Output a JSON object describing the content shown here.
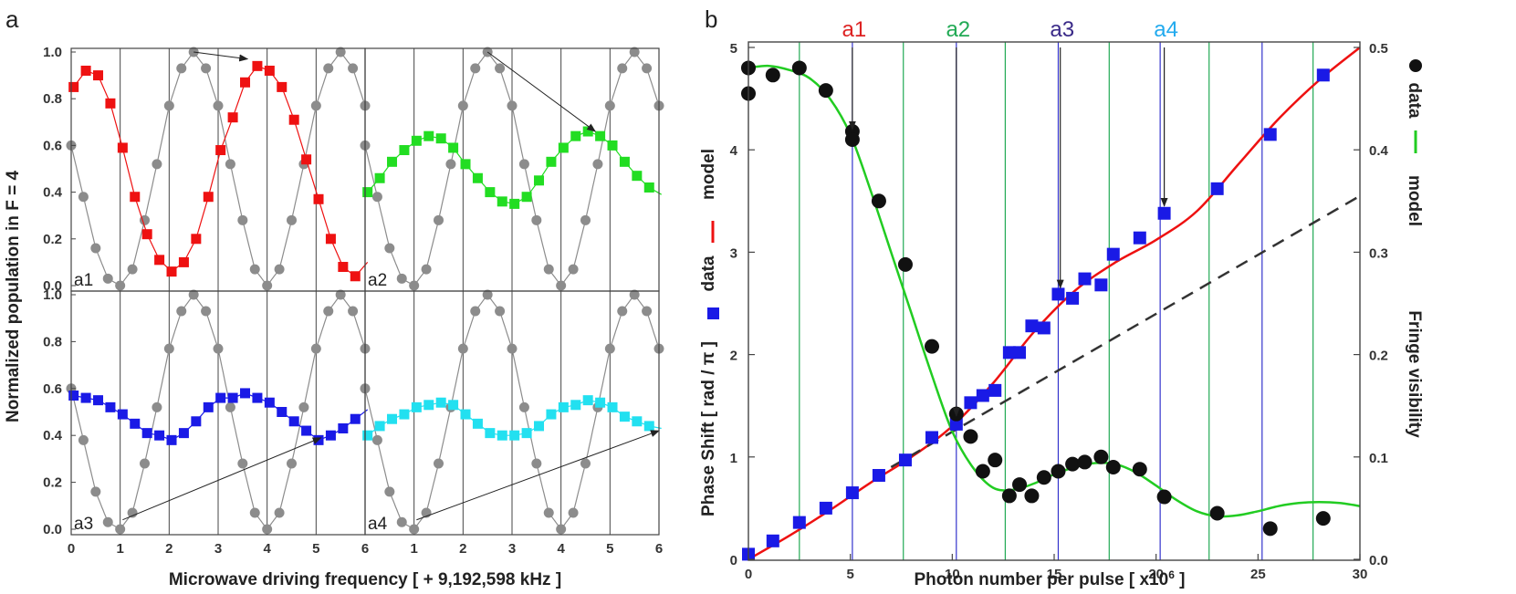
{
  "figure": {
    "panel_a_label": "a",
    "panel_b_label": "b"
  },
  "colors": {
    "gray": "#8c8c8c",
    "red": "#ee1111",
    "green": "#22dd22",
    "blue": "#1a1ae6",
    "cyan": "#22e0f0",
    "model_red": "#ee1111",
    "model_green": "#22cc22",
    "vline_green": "#22aa55",
    "vline_blue": "#3333cc",
    "data_black": "#111111",
    "a1": "#dd2222",
    "a2": "#22aa55",
    "a3": "#3a2a88",
    "a4": "#22aaee"
  },
  "chart_data": [
    {
      "type": "scatter",
      "id": "panel-a",
      "title": "",
      "xlabel": "Microwave driving frequency  [ + 9,192,598 kHz ]",
      "ylabel": "Normalized population in F = 4",
      "xlim": [
        0,
        6
      ],
      "ylim": [
        0,
        1.08
      ],
      "x_ticks": [
        "0",
        "1",
        "2",
        "3",
        "4",
        "5",
        "6"
      ],
      "y_ticks": [
        "0.0",
        "0.2",
        "0.4",
        "0.6",
        "0.8",
        "1.0"
      ],
      "subplots": [
        {
          "label": "a1",
          "color": "#ee1111",
          "x": [
            0.05,
            0.3,
            0.55,
            0.8,
            1.05,
            1.3,
            1.55,
            1.8,
            2.05,
            2.3,
            2.55,
            2.8,
            3.05,
            3.3,
            3.55,
            3.8,
            4.05,
            4.3,
            4.55,
            4.8,
            5.05,
            5.3,
            5.55,
            5.8,
            6.05
          ],
          "y": [
            0.85,
            0.92,
            0.9,
            0.78,
            0.59,
            0.38,
            0.22,
            0.11,
            0.06,
            0.1,
            0.2,
            0.38,
            0.58,
            0.72,
            0.87,
            0.94,
            0.92,
            0.85,
            0.71,
            0.54,
            0.37,
            0.2,
            0.08,
            0.04,
            0.1
          ]
        },
        {
          "label": "a2",
          "color": "#22dd22",
          "x": [
            0.05,
            0.3,
            0.55,
            0.8,
            1.05,
            1.3,
            1.55,
            1.8,
            2.05,
            2.3,
            2.55,
            2.8,
            3.05,
            3.3,
            3.55,
            3.8,
            4.05,
            4.3,
            4.55,
            4.8,
            5.05,
            5.3,
            5.55,
            5.8,
            6.05
          ],
          "y": [
            0.4,
            0.46,
            0.53,
            0.58,
            0.62,
            0.64,
            0.63,
            0.59,
            0.52,
            0.46,
            0.4,
            0.36,
            0.35,
            0.38,
            0.45,
            0.53,
            0.59,
            0.64,
            0.66,
            0.64,
            0.6,
            0.53,
            0.47,
            0.42,
            0.39
          ]
        },
        {
          "label": "a3",
          "color": "#1a1ae6",
          "x": [
            0.05,
            0.3,
            0.55,
            0.8,
            1.05,
            1.3,
            1.55,
            1.8,
            2.05,
            2.3,
            2.55,
            2.8,
            3.05,
            3.3,
            3.55,
            3.8,
            4.05,
            4.3,
            4.55,
            4.8,
            5.05,
            5.3,
            5.55,
            5.8,
            6.05
          ],
          "y": [
            0.57,
            0.56,
            0.55,
            0.52,
            0.49,
            0.45,
            0.41,
            0.4,
            0.38,
            0.41,
            0.46,
            0.52,
            0.56,
            0.56,
            0.58,
            0.56,
            0.54,
            0.5,
            0.46,
            0.42,
            0.38,
            0.4,
            0.43,
            0.47,
            0.51
          ]
        },
        {
          "label": "a4",
          "color": "#22e0f0",
          "x": [
            0.05,
            0.3,
            0.55,
            0.8,
            1.05,
            1.3,
            1.55,
            1.8,
            2.05,
            2.3,
            2.55,
            2.8,
            3.05,
            3.3,
            3.55,
            3.8,
            4.05,
            4.3,
            4.55,
            4.8,
            5.05,
            5.3,
            5.55,
            5.8,
            6.05
          ],
          "y": [
            0.4,
            0.44,
            0.47,
            0.49,
            0.52,
            0.53,
            0.54,
            0.53,
            0.49,
            0.45,
            0.41,
            0.4,
            0.4,
            0.41,
            0.44,
            0.49,
            0.52,
            0.53,
            0.55,
            0.54,
            0.52,
            0.48,
            0.46,
            0.44,
            0.43
          ]
        }
      ],
      "reference": {
        "color": "#8c8c8c",
        "x": [
          0.0,
          0.25,
          0.5,
          0.75,
          1.0,
          1.25,
          1.5,
          1.75,
          2.0,
          2.25,
          2.5,
          2.75,
          3.0,
          3.25,
          3.5,
          3.75,
          4.0,
          4.25,
          4.5,
          4.75,
          5.0,
          5.25,
          5.5,
          5.75,
          6.0
        ],
        "y": [
          0.6,
          0.38,
          0.16,
          0.03,
          0.0,
          0.07,
          0.28,
          0.52,
          0.77,
          0.93,
          1.0,
          0.93,
          0.77,
          0.52,
          0.28,
          0.07,
          0.0,
          0.07,
          0.28,
          0.52,
          0.77,
          0.93,
          1.0,
          0.93,
          0.77
        ]
      },
      "arrows": [
        {
          "subplot": "a1",
          "from": [
            2.5,
            1.0
          ],
          "to": [
            3.6,
            0.97
          ]
        },
        {
          "subplot": "a2",
          "from": [
            2.5,
            1.0
          ],
          "to": [
            4.7,
            0.66
          ]
        },
        {
          "subplot": "a3",
          "from": [
            1.05,
            0.04
          ],
          "to": [
            5.1,
            0.39
          ]
        },
        {
          "subplot": "a4",
          "from": [
            1.05,
            0.04
          ],
          "to": [
            6.0,
            0.42
          ]
        }
      ]
    },
    {
      "type": "scatter",
      "id": "panel-b",
      "title": "",
      "xlabel": "Photon number per pulse [ x10",
      "xlabel_sup": "6",
      "xlabel_end": " ]",
      "ylabel": "Phase Shift [ rad / π ]",
      "ylabel_data": "data",
      "ylabel_model": "model",
      "y2label": "Fringe visibility",
      "y2label_data": "data",
      "y2label_model": "model",
      "xlim": [
        0,
        30
      ],
      "ylim": [
        0,
        5
      ],
      "y2lim": [
        0,
        0.5
      ],
      "x_ticks": [
        "0",
        "5",
        "10",
        "15",
        "20",
        "25",
        "30"
      ],
      "y_ticks": [
        "0",
        "1",
        "2",
        "3",
        "4",
        "5"
      ],
      "y2_ticks": [
        "0.0",
        "0.1",
        "0.2",
        "0.3",
        "0.4",
        "0.5"
      ],
      "markers": [
        {
          "label": "a1",
          "x": 5.1,
          "arrow_to_y": 4.2
        },
        {
          "label": "a2",
          "x": 10.2,
          "arrow_to_y": 1.4
        },
        {
          "label": "a3",
          "x": 15.3,
          "arrow_to_y": 2.65
        },
        {
          "label": "a4",
          "x": 20.4,
          "arrow_to_y": 3.45
        }
      ],
      "vlines_green": [
        2.5,
        7.6,
        12.6,
        17.7,
        22.6,
        27.7
      ],
      "vlines_blue": [
        5.1,
        10.2,
        15.2,
        20.2,
        25.2
      ],
      "series": [
        {
          "name": "Phase shift data",
          "axis": "left",
          "marker": "square",
          "color": "#1a1ae6",
          "x": [
            0,
            1.2,
            2.5,
            3.8,
            5.1,
            6.4,
            7.7,
            9,
            10.2,
            10.9,
            11.5,
            12.1,
            12.8,
            13.3,
            13.9,
            14.5,
            15.2,
            15.9,
            16.5,
            17.3,
            17.9,
            19.2,
            20.4,
            23.0,
            25.6,
            28.2
          ],
          "y": [
            0.05,
            0.18,
            0.36,
            0.5,
            0.65,
            0.82,
            0.97,
            1.19,
            1.32,
            1.53,
            1.6,
            1.65,
            2.02,
            2.02,
            2.28,
            2.26,
            2.59,
            2.55,
            2.74,
            2.68,
            2.98,
            3.14,
            3.38,
            3.62,
            4.15,
            4.73
          ]
        },
        {
          "name": "Phase shift model",
          "axis": "left",
          "line": "solid",
          "color": "#ee1111",
          "x": [
            0,
            2,
            4,
            6,
            8,
            10,
            12,
            14,
            16,
            18,
            20,
            22,
            24,
            26,
            28,
            30
          ],
          "y": [
            0.0,
            0.23,
            0.48,
            0.75,
            1.0,
            1.3,
            1.72,
            2.22,
            2.62,
            2.9,
            3.12,
            3.4,
            3.85,
            4.3,
            4.68,
            5.0
          ]
        },
        {
          "name": "Linear reference",
          "axis": "left",
          "line": "dashed",
          "color": "#333333",
          "x": [
            7,
            30
          ],
          "y": [
            0.9,
            3.55
          ]
        },
        {
          "name": "Fringe visibility data",
          "axis": "right",
          "marker": "circle",
          "color": "#111111",
          "x": [
            0,
            0,
            1.2,
            2.5,
            3.8,
            5.1,
            5.1,
            6.4,
            7.7,
            9,
            10.2,
            10.9,
            11.5,
            12.1,
            12.8,
            13.3,
            13.9,
            14.5,
            15.2,
            15.9,
            16.5,
            17.3,
            17.9,
            19.2,
            20.4,
            23.0,
            25.6,
            28.2
          ],
          "y": [
            0.48,
            0.455,
            0.473,
            0.48,
            0.458,
            0.418,
            0.41,
            0.35,
            0.288,
            0.208,
            0.142,
            0.12,
            0.086,
            0.097,
            0.062,
            0.073,
            0.062,
            0.08,
            0.086,
            0.093,
            0.095,
            0.1,
            0.09,
            0.088,
            0.061,
            0.045,
            0.03,
            0.04
          ]
        },
        {
          "name": "Fringe visibility model",
          "axis": "right",
          "line": "solid",
          "color": "#22cc22",
          "x": [
            0,
            1,
            2,
            3,
            4,
            5,
            6,
            7,
            8,
            9,
            10,
            11,
            12,
            13,
            14,
            15,
            16,
            17,
            18,
            19,
            20,
            21,
            22,
            23,
            24,
            25,
            26,
            27,
            28,
            29,
            30
          ],
          "y": [
            0.48,
            0.482,
            0.478,
            0.47,
            0.45,
            0.415,
            0.36,
            0.3,
            0.24,
            0.18,
            0.125,
            0.09,
            0.07,
            0.068,
            0.074,
            0.083,
            0.09,
            0.094,
            0.093,
            0.085,
            0.072,
            0.058,
            0.047,
            0.042,
            0.043,
            0.047,
            0.052,
            0.055,
            0.056,
            0.055,
            0.052
          ]
        }
      ]
    }
  ]
}
